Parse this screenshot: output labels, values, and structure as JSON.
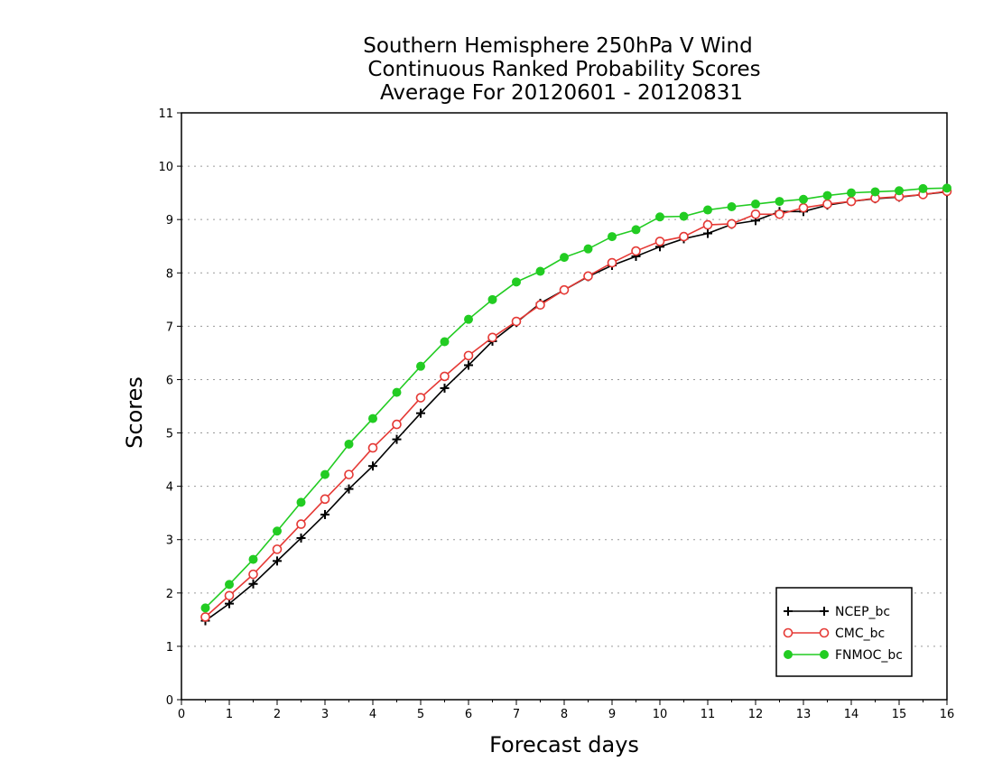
{
  "chart_data": {
    "type": "line",
    "title": [
      "Southern Hemisphere 250hPa V Wind",
      "Continuous Ranked Probability Scores",
      "Average For 20120601 - 20120831"
    ],
    "xlabel": "Forecast days",
    "ylabel": "Scores",
    "xlim": [
      0,
      16
    ],
    "ylim": [
      0,
      11
    ],
    "xticks": [
      0,
      1,
      2,
      3,
      4,
      5,
      6,
      7,
      8,
      9,
      10,
      11,
      12,
      13,
      14,
      15,
      16
    ],
    "yticks": [
      0,
      1,
      2,
      3,
      4,
      5,
      6,
      7,
      8,
      9,
      10,
      11
    ],
    "grid": "horizontal dotted",
    "legend_position": "bottom-right",
    "x": [
      0.5,
      1,
      1.5,
      2,
      2.5,
      3,
      3.5,
      4,
      4.5,
      5,
      5.5,
      6,
      6.5,
      7,
      7.5,
      8,
      8.5,
      9,
      9.5,
      10,
      10.5,
      11,
      11.5,
      12,
      12.5,
      13,
      13.5,
      14,
      14.5,
      15,
      15.5,
      16
    ],
    "series": [
      {
        "name": "NCEP_bc",
        "color": "#000000",
        "marker": "plus",
        "values": [
          1.48,
          1.8,
          2.17,
          2.6,
          3.03,
          3.47,
          3.95,
          4.38,
          4.88,
          5.37,
          5.84,
          6.27,
          6.72,
          7.07,
          7.43,
          7.68,
          7.93,
          8.14,
          8.31,
          8.49,
          8.64,
          8.74,
          8.91,
          8.98,
          9.15,
          9.15,
          9.27,
          9.34,
          9.39,
          9.42,
          9.47,
          9.52
        ]
      },
      {
        "name": "CMC_bc",
        "color": "#e53935",
        "marker": "open-circle",
        "values": [
          1.55,
          1.95,
          2.35,
          2.82,
          3.29,
          3.76,
          4.22,
          4.72,
          5.16,
          5.66,
          6.06,
          6.45,
          6.79,
          7.09,
          7.4,
          7.68,
          7.94,
          8.19,
          8.41,
          8.59,
          8.68,
          8.9,
          8.92,
          9.1,
          9.1,
          9.22,
          9.29,
          9.34,
          9.4,
          9.43,
          9.47,
          9.53
        ]
      },
      {
        "name": "FNMOC_bc",
        "color": "#22cc22",
        "marker": "filled-circle",
        "values": [
          1.72,
          2.16,
          2.63,
          3.16,
          3.7,
          4.22,
          4.79,
          5.27,
          5.76,
          6.25,
          6.71,
          7.13,
          7.5,
          7.83,
          8.03,
          8.29,
          8.45,
          8.68,
          8.81,
          9.05,
          9.06,
          9.18,
          9.24,
          9.29,
          9.34,
          9.38,
          9.45,
          9.5,
          9.52,
          9.54,
          9.58,
          9.59
        ]
      }
    ]
  }
}
